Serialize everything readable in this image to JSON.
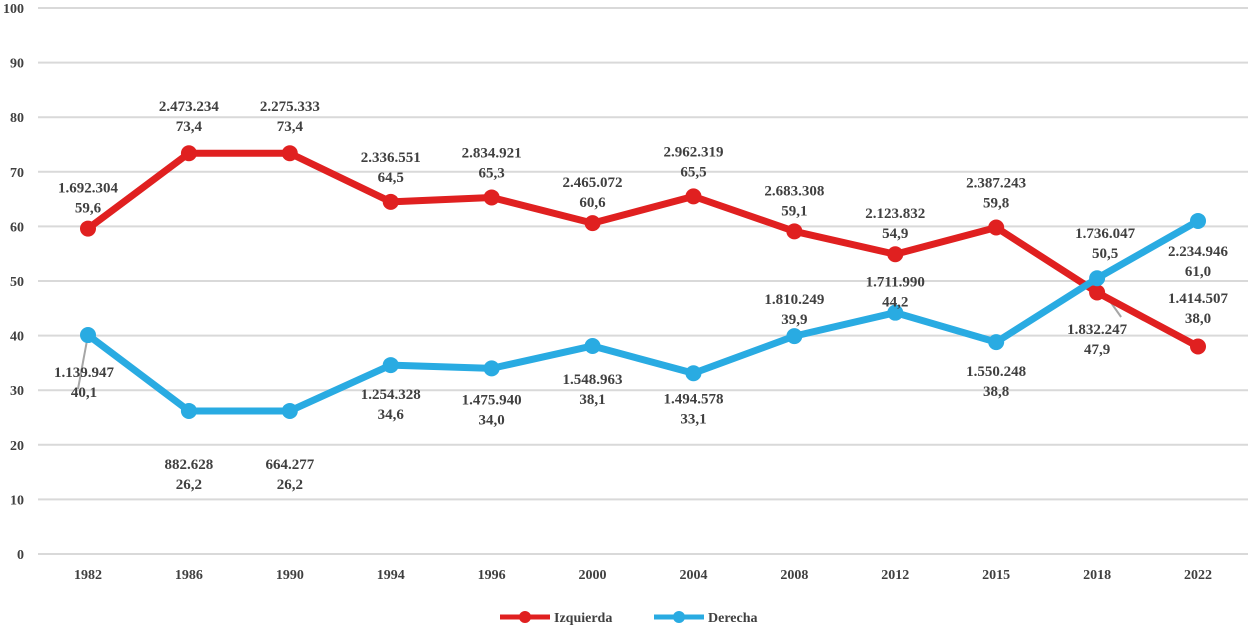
{
  "chart_data": {
    "type": "line",
    "title": "",
    "xlabel": "",
    "ylabel": "",
    "ylim": [
      0,
      100
    ],
    "yticks": [
      "0",
      "10",
      "20",
      "30",
      "40",
      "50",
      "60",
      "70",
      "80",
      "90",
      "100"
    ],
    "grid": true,
    "legend_position": "bottom",
    "categories": [
      "1982",
      "1986",
      "1990",
      "1994",
      "1996",
      "2000",
      "2004",
      "2008",
      "2012",
      "2015",
      "2018",
      "2022"
    ],
    "series": [
      {
        "name": "Izquierda",
        "color": "#e02020",
        "values": [
          59.6,
          73.4,
          73.4,
          64.5,
          65.3,
          60.6,
          65.5,
          59.1,
          54.9,
          59.8,
          47.9,
          38.0
        ],
        "labels_top": [
          "1.692.304",
          "2.473.234",
          "2.275.333",
          "2.336.551",
          "2.834.921",
          "2.465.072",
          "2.962.319",
          "2.683.308",
          "2.123.832",
          "2.387.243",
          "1.832.247",
          "1.414.507"
        ],
        "labels_bottom": [
          "59,6",
          "73,4",
          "73,4",
          "64,5",
          "65,3",
          "60,6",
          "65,5",
          "59,1",
          "54,9",
          "59,8",
          "47,9",
          "38,0"
        ]
      },
      {
        "name": "Derecha",
        "color": "#29abe2",
        "values": [
          40.1,
          26.2,
          26.2,
          34.6,
          34.0,
          38.1,
          33.1,
          39.9,
          44.2,
          38.8,
          50.5,
          61.0
        ],
        "labels_top": [
          "1.139.947",
          "882.628",
          "664.277",
          "1.254.328",
          "1.475.940",
          "1.548.963",
          "1.494.578",
          "1.810.249",
          "1.711.990",
          "1.550.248",
          "1.736.047",
          "2.234.946"
        ],
        "labels_bottom": [
          "40,1",
          "26,2",
          "26,2",
          "34,6",
          "34,0",
          "38,1",
          "33,1",
          "39,9",
          "44,2",
          "38,8",
          "50,5",
          "61,0"
        ]
      }
    ]
  }
}
